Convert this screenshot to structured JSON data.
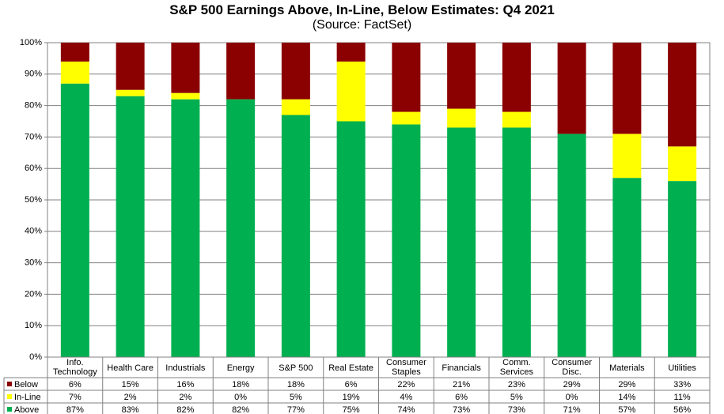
{
  "chart_data": {
    "type": "bar",
    "stacked": true,
    "title": "S&P 500 Earnings Above, In-Line, Below Estimates: Q4 2021",
    "subtitle": "(Source: FactSet)",
    "categories": [
      [
        "Info.",
        "Technology"
      ],
      [
        "Health Care"
      ],
      [
        "Industrials"
      ],
      [
        "Energy"
      ],
      [
        "S&P 500"
      ],
      [
        "Real Estate"
      ],
      [
        "Consumer",
        "Staples"
      ],
      [
        "Financials"
      ],
      [
        "Comm.",
        "Services"
      ],
      [
        "Consumer",
        "Disc."
      ],
      [
        "Materials"
      ],
      [
        "Utilities"
      ]
    ],
    "series": [
      {
        "name": "Above",
        "color": "#00b050",
        "values": [
          87,
          83,
          82,
          82,
          77,
          75,
          74,
          73,
          73,
          71,
          57,
          56
        ],
        "labels": [
          "87%",
          "83%",
          "82%",
          "82%",
          "77%",
          "75%",
          "74%",
          "73%",
          "73%",
          "71%",
          "57%",
          "56%"
        ]
      },
      {
        "name": "In-Line",
        "color": "#ffff00",
        "values": [
          7,
          2,
          2,
          0,
          5,
          19,
          4,
          6,
          5,
          0,
          14,
          11
        ],
        "labels": [
          "7%",
          "2%",
          "2%",
          "0%",
          "5%",
          "19%",
          "4%",
          "6%",
          "5%",
          "0%",
          "14%",
          "11%"
        ]
      },
      {
        "name": "Below",
        "color": "#8b0000",
        "values": [
          6,
          15,
          16,
          18,
          18,
          6,
          22,
          21,
          23,
          29,
          29,
          33
        ],
        "labels": [
          "6%",
          "15%",
          "16%",
          "18%",
          "18%",
          "6%",
          "22%",
          "21%",
          "23%",
          "29%",
          "29%",
          "33%"
        ]
      }
    ],
    "table_row_order": [
      "Below",
      "In-Line",
      "Above"
    ],
    "ylim": [
      0,
      100
    ],
    "yticks": [
      "0%",
      "10%",
      "20%",
      "30%",
      "40%",
      "50%",
      "60%",
      "70%",
      "80%",
      "90%",
      "100%"
    ],
    "grid": true,
    "legend": "data-table"
  }
}
